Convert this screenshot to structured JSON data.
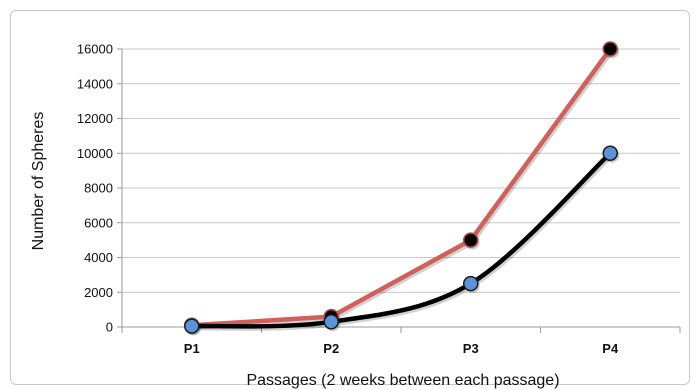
{
  "chart_data": {
    "type": "line",
    "title": "",
    "xlabel": "Passages (2 weeks between each passage)",
    "ylabel": "Number of Spheres",
    "categories": [
      "P1",
      "P2",
      "P3",
      "P4"
    ],
    "ylim": [
      0,
      16000
    ],
    "yticks": [
      0,
      2000,
      4000,
      6000,
      8000,
      10000,
      12000,
      14000,
      16000
    ],
    "grid": true,
    "legend": "none",
    "series": [
      {
        "values": [
          100,
          600,
          5000,
          16000
        ],
        "color": "#d0605a",
        "marker_color": "#000000",
        "smooth": false
      },
      {
        "values": [
          50,
          300,
          2500,
          10000
        ],
        "color": "#000000",
        "marker_color": "#5b93d9",
        "smooth": true
      }
    ]
  }
}
